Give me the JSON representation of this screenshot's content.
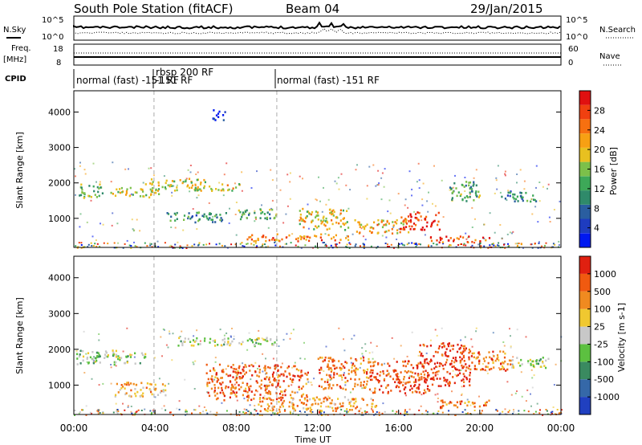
{
  "header": {
    "title": "South Pole Station (fitACF)",
    "beam": "Beam 04",
    "date": "29/Jan/2015"
  },
  "top_panels": {
    "nsky_label": "N.Sky",
    "nsky_ticks": [
      "10^5",
      "10^0"
    ],
    "nsearch_label": "N.Search",
    "nsearch_ticks": [
      "10^5",
      "10^0"
    ],
    "freq_label_1": "Freq.",
    "freq_label_2": "[MHz]",
    "freq_ticks": [
      "18",
      "8"
    ],
    "nave_label": "Nave",
    "nave_ticks": [
      "60",
      "0"
    ],
    "cpid_label": "CPID",
    "cpid_segments": [
      {
        "label": "normal (fast) -151 RF",
        "start": 0.0,
        "end": 3.95
      },
      {
        "label": "rbsp 200 RF",
        "label2": "-151 RF",
        "start": 3.95,
        "end": 10.0
      },
      {
        "label": "normal (fast) -151 RF",
        "start": 10.0,
        "end": 24.0
      }
    ]
  },
  "chart_data": [
    {
      "type": "heatmap",
      "name": "power",
      "ylabel": "Slant Range [km]",
      "yticks": [
        1000,
        2000,
        3000,
        4000
      ],
      "ylim": [
        180,
        4600
      ],
      "xlim": [
        0,
        24
      ],
      "markers": [
        3.95,
        10.0
      ],
      "colorbar": {
        "label": "Power [dB]",
        "ticks": [
          "4",
          "8",
          "12",
          "16",
          "20",
          "24",
          "28"
        ],
        "colors": [
          "#0018f0",
          "#1e3cbf",
          "#2a5ea0",
          "#2f8a6a",
          "#3da858",
          "#7cc04a",
          "#e8c020",
          "#f7a013",
          "#f77010",
          "#f04010",
          "#e01010"
        ]
      },
      "regions": [
        {
          "x": [
            0.1,
            1.4
          ],
          "y": [
            1600,
            2000
          ],
          "v": 0.45
        },
        {
          "x": [
            1.8,
            4.2
          ],
          "y": [
            1600,
            1900
          ],
          "v": 0.55
        },
        {
          "x": [
            3.5,
            6.5
          ],
          "y": [
            1800,
            2150
          ],
          "v": 0.55
        },
        {
          "x": [
            4.5,
            7.5
          ],
          "y": [
            900,
            1200
          ],
          "v": 0.35
        },
        {
          "x": [
            6.5,
            8.2
          ],
          "y": [
            1800,
            2000
          ],
          "v": 0.6
        },
        {
          "x": [
            8.0,
            10.0
          ],
          "y": [
            1000,
            1300
          ],
          "v": 0.4
        },
        {
          "x": [
            8.5,
            13.5
          ],
          "y": [
            380,
            580
          ],
          "v": 0.75
        },
        {
          "x": [
            11.0,
            13.5
          ],
          "y": [
            700,
            1300
          ],
          "v": 0.6
        },
        {
          "x": [
            13.8,
            16.5
          ],
          "y": [
            600,
            1000
          ],
          "v": 0.65
        },
        {
          "x": [
            16.0,
            18.0
          ],
          "y": [
            700,
            1200
          ],
          "v": 0.9
        },
        {
          "x": [
            17.5,
            20.5
          ],
          "y": [
            350,
            520
          ],
          "v": 0.85
        },
        {
          "x": [
            18.5,
            20.0
          ],
          "y": [
            1500,
            2100
          ],
          "v": 0.4
        },
        {
          "x": [
            21.0,
            22.8
          ],
          "y": [
            1500,
            1800
          ],
          "v": 0.3
        },
        {
          "x": [
            6.8,
            7.5
          ],
          "y": [
            3800,
            4100
          ],
          "v": 0.1
        }
      ]
    },
    {
      "type": "heatmap",
      "name": "velocity",
      "ylabel": "Slant Range [km]",
      "yticks": [
        1000,
        2000,
        3000,
        4000
      ],
      "ylim": [
        180,
        4600
      ],
      "xlim": [
        0,
        24
      ],
      "xticks": [
        "00:00",
        "04:00",
        "08:00",
        "12:00",
        "16:00",
        "20:00",
        "00:00"
      ],
      "xlabel": "Time UT",
      "markers": [
        3.95,
        10.0
      ],
      "colorbar": {
        "label": "Velocity [m s-1]",
        "ticks": [
          "1000",
          "500",
          "100",
          "25",
          "-25",
          "-100",
          "-500",
          "-1000"
        ],
        "colors": [
          "#2040c0",
          "#3568a8",
          "#3a8a60",
          "#5cc040",
          "#c8c8c8",
          "#f0c830",
          "#f08a20",
          "#f05a10",
          "#e02010"
        ]
      },
      "regions": [
        {
          "x": [
            0.1,
            3.5
          ],
          "y": [
            1600,
            2000
          ],
          "v": 0.45
        },
        {
          "x": [
            2.0,
            4.5
          ],
          "y": [
            700,
            1100
          ],
          "v": 0.65
        },
        {
          "x": [
            5.0,
            10.0
          ],
          "y": [
            2100,
            2350
          ],
          "v": 0.45
        },
        {
          "x": [
            6.5,
            11.5
          ],
          "y": [
            600,
            1600
          ],
          "v": 0.82
        },
        {
          "x": [
            9.0,
            15.0
          ],
          "y": [
            300,
            700
          ],
          "v": 0.7
        },
        {
          "x": [
            12.0,
            14.5
          ],
          "y": [
            900,
            1800
          ],
          "v": 0.8
        },
        {
          "x": [
            14.5,
            17.5
          ],
          "y": [
            800,
            1700
          ],
          "v": 0.85
        },
        {
          "x": [
            17.0,
            19.5
          ],
          "y": [
            1000,
            2200
          ],
          "v": 0.92
        },
        {
          "x": [
            19.5,
            21.5
          ],
          "y": [
            1400,
            2000
          ],
          "v": 0.8
        },
        {
          "x": [
            21.5,
            23.5
          ],
          "y": [
            1500,
            1800
          ],
          "v": 0.45
        },
        {
          "x": [
            18.0,
            20.5
          ],
          "y": [
            350,
            600
          ],
          "v": 0.8
        }
      ]
    }
  ]
}
